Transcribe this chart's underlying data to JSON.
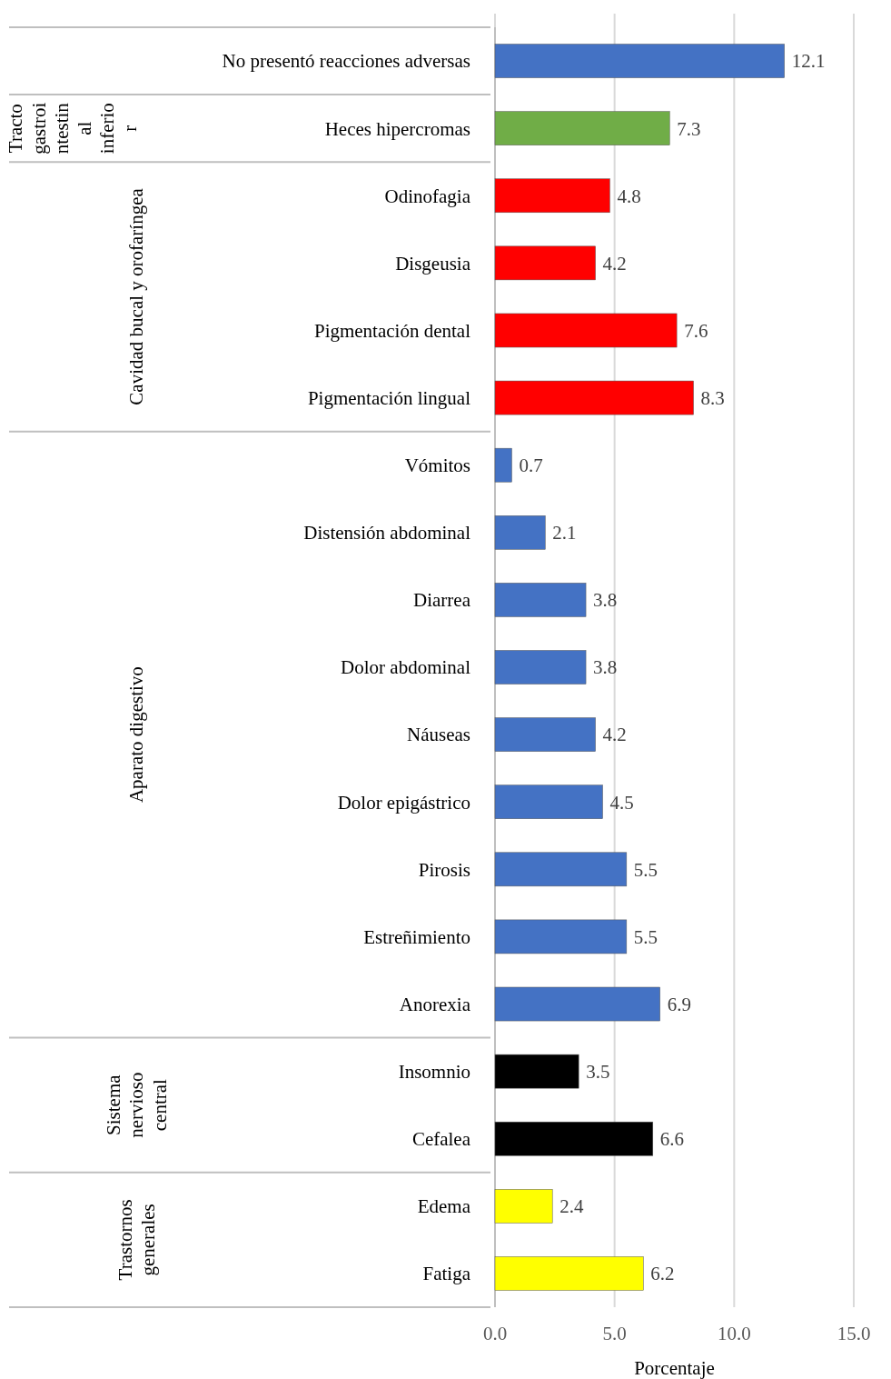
{
  "chart_data": {
    "type": "bar",
    "orientation": "horizontal",
    "categories": [
      "No presentó reacciones adversas",
      "Heces hipercromas",
      "Odinofagia",
      "Disgeusia",
      "Pigmentación dental",
      "Pigmentación lingual",
      "Vómitos",
      "Distensión abdominal",
      "Diarrea",
      "Dolor abdominal",
      "Náuseas",
      "Dolor epigástrico",
      "Pirosis",
      "Estreñimiento",
      "Anorexia",
      "Insomnio",
      "Cefalea",
      "Edema",
      "Fatiga"
    ],
    "values": [
      12.1,
      7.3,
      4.8,
      4.2,
      7.6,
      8.3,
      0.7,
      2.1,
      3.8,
      3.8,
      4.2,
      4.5,
      5.5,
      5.5,
      6.9,
      3.5,
      6.6,
      2.4,
      6.2
    ],
    "colors": [
      "#4472c4",
      "#70ad47",
      "#ff0000",
      "#ff0000",
      "#ff0000",
      "#ff0000",
      "#4472c4",
      "#4472c4",
      "#4472c4",
      "#4472c4",
      "#4472c4",
      "#4472c4",
      "#4472c4",
      "#4472c4",
      "#4472c4",
      "#000000",
      "#000000",
      "#ffff00",
      "#ffff00"
    ],
    "xlim": [
      0,
      15
    ],
    "xticks": [
      {
        "value": 0,
        "label": "0.0"
      },
      {
        "value": 5,
        "label": "5.0"
      },
      {
        "value": 10,
        "label": "10.0"
      },
      {
        "value": 15,
        "label": "15.0"
      }
    ],
    "xlabel": "Porcentaje",
    "grid": "x",
    "data_labels": true,
    "annotations": [
      "Tracto gastrointestinal inferior",
      "Cavidad bucal y orofaríngea",
      "Aparato digestivo",
      "Sistema nervioso central",
      "Trastornos generales"
    ]
  }
}
